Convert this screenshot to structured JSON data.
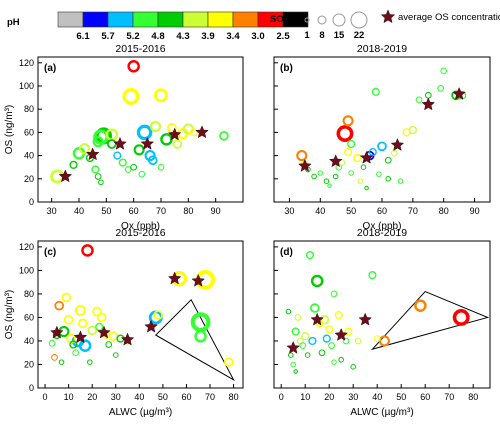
{
  "legend": {
    "ph_label": "pH",
    "ph_colors": [
      "#c0c0c0",
      "#0000ff",
      "#00bfff",
      "#33ff33",
      "#00cc00",
      "#ccff33",
      "#ffff00",
      "#ff8000",
      "#ff0000",
      "#000000"
    ],
    "ph_ticks": [
      "6.1",
      "5.7",
      "5.2",
      "4.8",
      "4.3",
      "3.9",
      "3.4",
      "3.0",
      "2.5"
    ],
    "so4_label": "SO",
    "so4_sub": "4",
    "so4_sup": "2-",
    "so4_sizes": [
      "1",
      "8",
      "15",
      "22"
    ],
    "star_label": "average OS concentration"
  },
  "chart_data": [
    {
      "panel": "(a)",
      "type": "scatter",
      "title": "2015-2016",
      "xlabel": "Ox (ppb)",
      "ylabel": "OS (ng/m³)",
      "xlim": [
        25,
        100
      ],
      "ylim": [
        0,
        125
      ],
      "xticks": [
        "30",
        "40",
        "50",
        "60",
        "70",
        "80",
        "90"
      ],
      "yticks": [
        "0",
        "20",
        "40",
        "60",
        "80",
        "100",
        "120"
      ],
      "points": [
        {
          "x": 32,
          "y": 22,
          "s": 8,
          "c": 5
        },
        {
          "x": 38,
          "y": 32,
          "s": 4,
          "c": 4
        },
        {
          "x": 40,
          "y": 42,
          "s": 7,
          "c": 3
        },
        {
          "x": 42,
          "y": 46,
          "s": 6,
          "c": 5
        },
        {
          "x": 44,
          "y": 38,
          "s": 4,
          "c": 4
        },
        {
          "x": 46,
          "y": 28,
          "s": 4,
          "c": 3
        },
        {
          "x": 47,
          "y": 22,
          "s": 3,
          "c": 4
        },
        {
          "x": 48,
          "y": 17,
          "s": 2,
          "c": 4
        },
        {
          "x": 47,
          "y": 52,
          "s": 6,
          "c": 3
        },
        {
          "x": 48,
          "y": 56,
          "s": 9,
          "c": 3
        },
        {
          "x": 49,
          "y": 57,
          "s": 10,
          "c": 4
        },
        {
          "x": 52,
          "y": 58,
          "s": 7,
          "c": 5
        },
        {
          "x": 52,
          "y": 50,
          "s": 5,
          "c": 4
        },
        {
          "x": 54,
          "y": 40,
          "s": 4,
          "c": 2
        },
        {
          "x": 56,
          "y": 34,
          "s": 4,
          "c": 3
        },
        {
          "x": 58,
          "y": 28,
          "s": 3,
          "c": 3
        },
        {
          "x": 59,
          "y": 91,
          "s": 10,
          "c": 6
        },
        {
          "x": 60,
          "y": 117,
          "s": 7,
          "c": 8
        },
        {
          "x": 62,
          "y": 45,
          "s": 6,
          "c": 4
        },
        {
          "x": 63,
          "y": 24,
          "s": 3,
          "c": 3
        },
        {
          "x": 64,
          "y": 60,
          "s": 9,
          "c": 2
        },
        {
          "x": 66,
          "y": 40,
          "s": 6,
          "c": 2
        },
        {
          "x": 67,
          "y": 36,
          "s": 5,
          "c": 2
        },
        {
          "x": 68,
          "y": 65,
          "s": 6,
          "c": 5
        },
        {
          "x": 70,
          "y": 92,
          "s": 8,
          "c": 6
        },
        {
          "x": 72,
          "y": 54,
          "s": 7,
          "c": 4
        },
        {
          "x": 74,
          "y": 64,
          "s": 5,
          "c": 6
        },
        {
          "x": 76,
          "y": 50,
          "s": 5,
          "c": 5
        },
        {
          "x": 78,
          "y": 59,
          "s": 6,
          "c": 6
        },
        {
          "x": 80,
          "y": 63,
          "s": 6,
          "c": 5
        },
        {
          "x": 82,
          "y": 60,
          "s": 4,
          "c": 6
        },
        {
          "x": 93,
          "y": 57,
          "s": 5,
          "c": 3
        },
        {
          "x": 70,
          "y": 30,
          "s": 3,
          "c": 3
        },
        {
          "x": 60,
          "y": 30,
          "s": 3,
          "c": 4
        }
      ],
      "stars": [
        [
          35,
          22
        ],
        [
          45,
          41
        ],
        [
          55,
          50
        ],
        [
          65,
          50
        ],
        [
          75,
          58
        ],
        [
          85,
          60
        ]
      ]
    },
    {
      "panel": "(b)",
      "type": "scatter",
      "title": "2018-2019",
      "xlabel": "Ox (ppb)",
      "ylabel": "",
      "xlim": [
        25,
        95
      ],
      "ylim": [
        0,
        125
      ],
      "xticks": [
        "30",
        "40",
        "50",
        "60",
        "70",
        "80",
        "90"
      ],
      "yticks": [],
      "points": [
        {
          "x": 34,
          "y": 40,
          "s": 6,
          "c": 7
        },
        {
          "x": 35,
          "y": 33,
          "s": 3,
          "c": 5
        },
        {
          "x": 36,
          "y": 28,
          "s": 2,
          "c": 4
        },
        {
          "x": 38,
          "y": 22,
          "s": 2,
          "c": 4
        },
        {
          "x": 40,
          "y": 25,
          "s": 2,
          "c": 3
        },
        {
          "x": 42,
          "y": 18,
          "s": 2,
          "c": 4
        },
        {
          "x": 43,
          "y": 14,
          "s": 1,
          "c": 3
        },
        {
          "x": 45,
          "y": 22,
          "s": 2,
          "c": 4
        },
        {
          "x": 46,
          "y": 30,
          "s": 3,
          "c": 3
        },
        {
          "x": 47,
          "y": 34,
          "s": 3,
          "c": 5
        },
        {
          "x": 48,
          "y": 59,
          "s": 10,
          "c": 8
        },
        {
          "x": 49,
          "y": 70,
          "s": 6,
          "c": 7
        },
        {
          "x": 49,
          "y": 43,
          "s": 4,
          "c": 6
        },
        {
          "x": 50,
          "y": 50,
          "s": 4,
          "c": 3
        },
        {
          "x": 52,
          "y": 38,
          "s": 4,
          "c": 6
        },
        {
          "x": 53,
          "y": 18,
          "s": 2,
          "c": 5
        },
        {
          "x": 54,
          "y": 30,
          "s": 2,
          "c": 4
        },
        {
          "x": 55,
          "y": 12,
          "s": 1,
          "c": 4
        },
        {
          "x": 56,
          "y": 40,
          "s": 5,
          "c": 1
        },
        {
          "x": 57,
          "y": 43,
          "s": 4,
          "c": 2
        },
        {
          "x": 58,
          "y": 95,
          "s": 4,
          "c": 3
        },
        {
          "x": 59,
          "y": 24,
          "s": 2,
          "c": 3
        },
        {
          "x": 60,
          "y": 48,
          "s": 5,
          "c": 2
        },
        {
          "x": 62,
          "y": 36,
          "s": 3,
          "c": 4
        },
        {
          "x": 64,
          "y": 42,
          "s": 3,
          "c": 5
        },
        {
          "x": 66,
          "y": 18,
          "s": 2,
          "c": 3
        },
        {
          "x": 68,
          "y": 60,
          "s": 4,
          "c": 6
        },
        {
          "x": 70,
          "y": 62,
          "s": 4,
          "c": 5
        },
        {
          "x": 72,
          "y": 88,
          "s": 3,
          "c": 3
        },
        {
          "x": 75,
          "y": 92,
          "s": 3,
          "c": 4
        },
        {
          "x": 79,
          "y": 98,
          "s": 3,
          "c": 3
        },
        {
          "x": 80,
          "y": 113,
          "s": 3,
          "c": 3
        },
        {
          "x": 84,
          "y": 92,
          "s": 5,
          "c": 4
        },
        {
          "x": 86,
          "y": 92,
          "s": 4,
          "c": 3
        },
        {
          "x": 62,
          "y": 20,
          "s": 2,
          "c": 4
        },
        {
          "x": 50,
          "y": 25,
          "s": 2,
          "c": 3
        }
      ],
      "stars": [
        [
          35,
          31
        ],
        [
          45,
          35
        ],
        [
          55,
          38
        ],
        [
          65,
          49
        ],
        [
          75,
          84
        ],
        [
          85,
          93
        ]
      ]
    },
    {
      "panel": "(c)",
      "type": "scatter",
      "title": "2015-2016",
      "xlabel": "ALWC (µg/m³)",
      "ylabel": "OS (ng/m³)",
      "xlim": [
        -3,
        84
      ],
      "ylim": [
        0,
        125
      ],
      "xticks": [
        "0",
        "10",
        "20",
        "30",
        "40",
        "50",
        "60",
        "70",
        "80"
      ],
      "yticks": [
        "0",
        "20",
        "40",
        "60",
        "80",
        "100",
        "120"
      ],
      "points": [
        {
          "x": 3,
          "y": 38,
          "s": 3,
          "c": 3
        },
        {
          "x": 4,
          "y": 26,
          "s": 3,
          "c": 7
        },
        {
          "x": 5,
          "y": 45,
          "s": 4,
          "c": 4
        },
        {
          "x": 6,
          "y": 70,
          "s": 5,
          "c": 7
        },
        {
          "x": 7,
          "y": 22,
          "s": 2,
          "c": 4
        },
        {
          "x": 8,
          "y": 48,
          "s": 6,
          "c": 4
        },
        {
          "x": 9,
          "y": 77,
          "s": 5,
          "c": 6
        },
        {
          "x": 10,
          "y": 58,
          "s": 5,
          "c": 6
        },
        {
          "x": 11,
          "y": 42,
          "s": 5,
          "c": 6
        },
        {
          "x": 12,
          "y": 37,
          "s": 4,
          "c": 4
        },
        {
          "x": 13,
          "y": 30,
          "s": 3,
          "c": 3
        },
        {
          "x": 14,
          "y": 40,
          "s": 7,
          "c": 2
        },
        {
          "x": 15,
          "y": 66,
          "s": 6,
          "c": 6
        },
        {
          "x": 16,
          "y": 55,
          "s": 5,
          "c": 6
        },
        {
          "x": 17,
          "y": 36,
          "s": 7,
          "c": 2
        },
        {
          "x": 18,
          "y": 117,
          "s": 7,
          "c": 8
        },
        {
          "x": 19,
          "y": 22,
          "s": 2,
          "c": 4
        },
        {
          "x": 20,
          "y": 49,
          "s": 5,
          "c": 5
        },
        {
          "x": 22,
          "y": 65,
          "s": 5,
          "c": 6
        },
        {
          "x": 23,
          "y": 52,
          "s": 4,
          "c": 3
        },
        {
          "x": 24,
          "y": 60,
          "s": 5,
          "c": 6
        },
        {
          "x": 26,
          "y": 45,
          "s": 4,
          "c": 6
        },
        {
          "x": 27,
          "y": 37,
          "s": 3,
          "c": 4
        },
        {
          "x": 29,
          "y": 44,
          "s": 5,
          "c": 6
        },
        {
          "x": 30,
          "y": 28,
          "s": 2,
          "c": 4
        },
        {
          "x": 32,
          "y": 42,
          "s": 4,
          "c": 4
        },
        {
          "x": 35,
          "y": 40,
          "s": 3,
          "c": 3
        },
        {
          "x": 47,
          "y": 60,
          "s": 8,
          "c": 2
        },
        {
          "x": 48,
          "y": 62,
          "s": 5,
          "c": 6
        },
        {
          "x": 57,
          "y": 93,
          "s": 9,
          "c": 6
        },
        {
          "x": 66,
          "y": 56,
          "s": 12,
          "c": 3
        },
        {
          "x": 68,
          "y": 92,
          "s": 12,
          "c": 6
        },
        {
          "x": 66,
          "y": 44,
          "s": 7,
          "c": 3
        },
        {
          "x": 78,
          "y": 22,
          "s": 5,
          "c": 6
        }
      ],
      "stars": [
        [
          5,
          47
        ],
        [
          15,
          43
        ],
        [
          25,
          47
        ],
        [
          35,
          41
        ],
        [
          45,
          52
        ],
        [
          55,
          93
        ],
        [
          65,
          91
        ]
      ]
    },
    {
      "panel": "(d)",
      "type": "scatter",
      "title": "2018-2019",
      "xlabel": "ALWC (µg/m³)",
      "ylabel": "",
      "xlim": [
        -3,
        87
      ],
      "ylim": [
        0,
        125
      ],
      "xticks": [
        "0",
        "10",
        "20",
        "30",
        "40",
        "50",
        "60",
        "70",
        "80"
      ],
      "yticks": [],
      "points": [
        {
          "x": 3,
          "y": 65,
          "s": 2,
          "c": 4
        },
        {
          "x": 4,
          "y": 28,
          "s": 2,
          "c": 4
        },
        {
          "x": 5,
          "y": 20,
          "s": 2,
          "c": 3
        },
        {
          "x": 6,
          "y": 48,
          "s": 4,
          "c": 3
        },
        {
          "x": 7,
          "y": 60,
          "s": 3,
          "c": 5
        },
        {
          "x": 8,
          "y": 40,
          "s": 3,
          "c": 5
        },
        {
          "x": 9,
          "y": 36,
          "s": 3,
          "c": 3
        },
        {
          "x": 10,
          "y": 44,
          "s": 4,
          "c": 5
        },
        {
          "x": 11,
          "y": 28,
          "s": 2,
          "c": 4
        },
        {
          "x": 12,
          "y": 113,
          "s": 4,
          "c": 3
        },
        {
          "x": 13,
          "y": 40,
          "s": 4,
          "c": 2
        },
        {
          "x": 14,
          "y": 68,
          "s": 5,
          "c": 3
        },
        {
          "x": 15,
          "y": 91,
          "s": 7,
          "c": 4
        },
        {
          "x": 16,
          "y": 55,
          "s": 4,
          "c": 6
        },
        {
          "x": 17,
          "y": 30,
          "s": 3,
          "c": 4
        },
        {
          "x": 18,
          "y": 58,
          "s": 5,
          "c": 5
        },
        {
          "x": 19,
          "y": 42,
          "s": 4,
          "c": 2
        },
        {
          "x": 20,
          "y": 50,
          "s": 4,
          "c": 6
        },
        {
          "x": 21,
          "y": 36,
          "s": 3,
          "c": 3
        },
        {
          "x": 22,
          "y": 80,
          "s": 3,
          "c": 3
        },
        {
          "x": 24,
          "y": 62,
          "s": 4,
          "c": 6
        },
        {
          "x": 25,
          "y": 24,
          "s": 2,
          "c": 4
        },
        {
          "x": 27,
          "y": 40,
          "s": 3,
          "c": 3
        },
        {
          "x": 28,
          "y": 48,
          "s": 4,
          "c": 6
        },
        {
          "x": 30,
          "y": 18,
          "s": 2,
          "c": 4
        },
        {
          "x": 32,
          "y": 40,
          "s": 3,
          "c": 5
        },
        {
          "x": 38,
          "y": 96,
          "s": 4,
          "c": 3
        },
        {
          "x": 40,
          "y": 42,
          "s": 3,
          "c": 6
        },
        {
          "x": 43,
          "y": 40,
          "s": 6,
          "c": 7
        },
        {
          "x": 58,
          "y": 70,
          "s": 7,
          "c": 7
        },
        {
          "x": 75,
          "y": 60,
          "s": 10,
          "c": 8
        },
        {
          "x": 22,
          "y": 22,
          "s": 2,
          "c": 3
        },
        {
          "x": 6,
          "y": 14,
          "s": 1,
          "c": 4
        }
      ],
      "stars": [
        [
          5,
          34
        ],
        [
          15,
          58
        ],
        [
          25,
          45
        ],
        [
          35,
          58
        ]
      ]
    }
  ]
}
